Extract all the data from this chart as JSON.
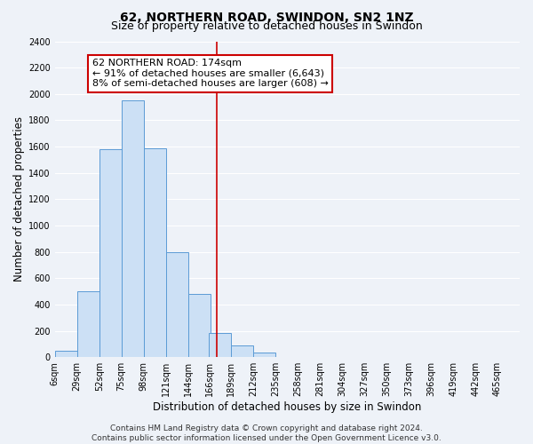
{
  "title": "62, NORTHERN ROAD, SWINDON, SN2 1NZ",
  "subtitle": "Size of property relative to detached houses in Swindon",
  "xlabel": "Distribution of detached houses by size in Swindon",
  "ylabel": "Number of detached properties",
  "bar_left_edges": [
    6,
    29,
    52,
    75,
    98,
    121,
    144,
    166,
    189,
    212,
    235,
    258,
    281,
    304,
    327,
    350,
    373,
    396,
    419,
    442
  ],
  "bar_heights": [
    50,
    500,
    1580,
    1950,
    1590,
    800,
    480,
    185,
    90,
    35,
    0,
    0,
    0,
    0,
    0,
    0,
    0,
    0,
    0,
    0
  ],
  "bin_width": 23,
  "bar_color": "#cce0f5",
  "bar_edge_color": "#5b9bd5",
  "x_tick_labels": [
    "6sqm",
    "29sqm",
    "52sqm",
    "75sqm",
    "98sqm",
    "121sqm",
    "144sqm",
    "166sqm",
    "189sqm",
    "212sqm",
    "235sqm",
    "258sqm",
    "281sqm",
    "304sqm",
    "327sqm",
    "350sqm",
    "373sqm",
    "396sqm",
    "419sqm",
    "442sqm",
    "465sqm"
  ],
  "x_tick_positions": [
    6,
    29,
    52,
    75,
    98,
    121,
    144,
    166,
    189,
    212,
    235,
    258,
    281,
    304,
    327,
    350,
    373,
    396,
    419,
    442,
    465
  ],
  "ylim": [
    0,
    2400
  ],
  "yticks": [
    0,
    200,
    400,
    600,
    800,
    1000,
    1200,
    1400,
    1600,
    1800,
    2000,
    2200,
    2400
  ],
  "xlim_min": 6,
  "xlim_max": 488,
  "property_line_x": 174,
  "property_line_color": "#cc0000",
  "annotation_line1": "62 NORTHERN ROAD: 174sqm",
  "annotation_line2": "← 91% of detached houses are smaller (6,643)",
  "annotation_line3": "8% of semi-detached houses are larger (608) →",
  "footer_line1": "Contains HM Land Registry data © Crown copyright and database right 2024.",
  "footer_line2": "Contains public sector information licensed under the Open Government Licence v3.0.",
  "bg_color": "#eef2f8",
  "plot_bg_color": "#eef2f8",
  "grid_color": "#ffffff",
  "title_fontsize": 10,
  "subtitle_fontsize": 9,
  "axis_label_fontsize": 8.5,
  "tick_fontsize": 7,
  "annotation_fontsize": 8,
  "footer_fontsize": 6.5
}
